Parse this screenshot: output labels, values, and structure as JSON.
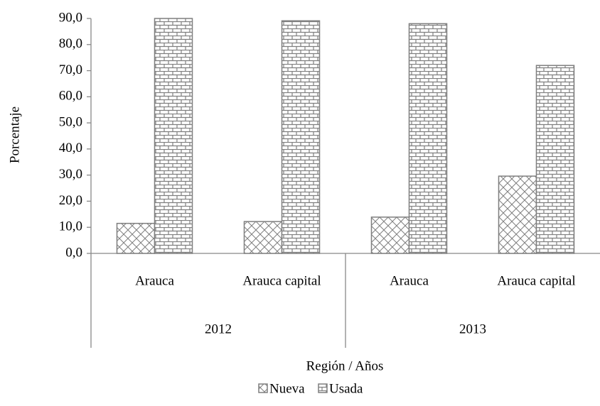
{
  "chart_data": {
    "type": "bar",
    "y_label": "Porcentaje",
    "x_label": "Región / Años",
    "categories": [
      "Arauca",
      "Arauca capital",
      "Arauca",
      "Arauca capital"
    ],
    "category_groups": [
      "2012",
      "2013"
    ],
    "series": [
      {
        "name": "Nueva",
        "color": "#7f7f7f",
        "pattern": "diagonal-cross",
        "values": [
          11.5,
          12.2,
          13.9,
          29.6
        ]
      },
      {
        "name": "Usada",
        "color": "#7f7f7f",
        "pattern": "brick",
        "values": [
          90,
          89.1,
          88,
          72
        ]
      }
    ],
    "ylim": [
      0,
      90
    ],
    "yticks": [
      {
        "value": 0,
        "label": "0,0"
      },
      {
        "value": 10,
        "label": "10,0"
      },
      {
        "value": 20,
        "label": "20,0"
      },
      {
        "value": 30,
        "label": "30,0"
      },
      {
        "value": 40,
        "label": "40,0"
      },
      {
        "value": 50,
        "label": "50,0"
      },
      {
        "value": 60,
        "label": "60,0"
      },
      {
        "value": 70,
        "label": "70,0"
      },
      {
        "value": 80,
        "label": "80,0"
      },
      {
        "value": 90,
        "label": "90,0"
      }
    ],
    "grid": false,
    "legend": "bottom"
  }
}
